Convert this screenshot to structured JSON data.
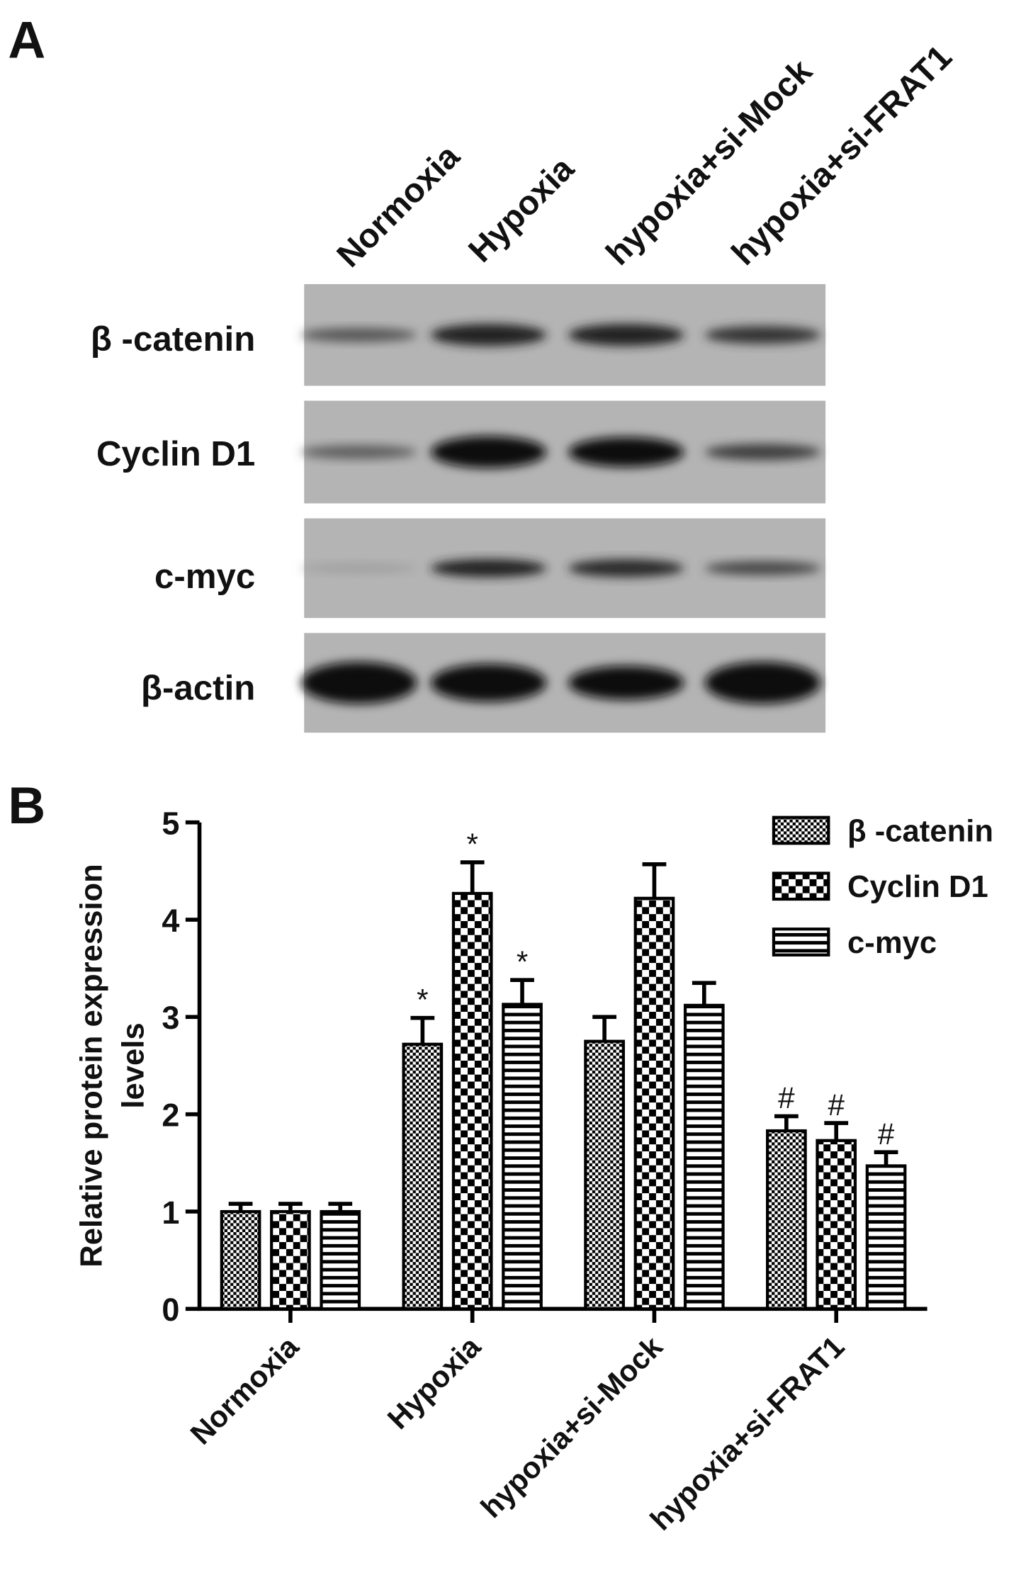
{
  "panel_a": {
    "label": "A",
    "lanes": [
      "Normoxia",
      "Hypoxia",
      "hypoxia+si-Mock",
      "hypoxia+si-FRAT1"
    ],
    "rows": [
      "β -catenin",
      "Cyclin D1",
      "c-myc",
      "β-actin"
    ]
  },
  "panel_b": {
    "label": "B"
  },
  "chart_data": {
    "type": "bar",
    "categories": [
      "Normoxia",
      "Hypoxia",
      "hypoxia+si-Mock",
      "hypoxia+si-FRAT1"
    ],
    "ylabel": [
      "Relative protein expression",
      "levels"
    ],
    "ylim": [
      0,
      5
    ],
    "yticks": [
      0,
      1,
      2,
      3,
      4,
      5
    ],
    "legend": "top-right",
    "series": [
      {
        "name": "β -catenin",
        "color": "#000000",
        "pattern": "dots",
        "values": [
          1.0,
          2.72,
          2.75,
          1.83
        ],
        "errors": [
          0.08,
          0.27,
          0.25,
          0.15
        ],
        "annotations": [
          null,
          "*",
          null,
          "#"
        ]
      },
      {
        "name": "Cyclin D1",
        "color": "#000000",
        "pattern": "checker",
        "values": [
          1.0,
          4.27,
          4.22,
          1.73
        ],
        "errors": [
          0.08,
          0.32,
          0.35,
          0.18
        ],
        "annotations": [
          null,
          "*",
          null,
          "#"
        ]
      },
      {
        "name": "c-myc",
        "color": "#000000",
        "pattern": "stripes",
        "values": [
          1.0,
          3.13,
          3.12,
          1.47
        ],
        "errors": [
          0.08,
          0.25,
          0.23,
          0.14
        ],
        "annotations": [
          null,
          "*",
          null,
          "#"
        ]
      }
    ]
  }
}
